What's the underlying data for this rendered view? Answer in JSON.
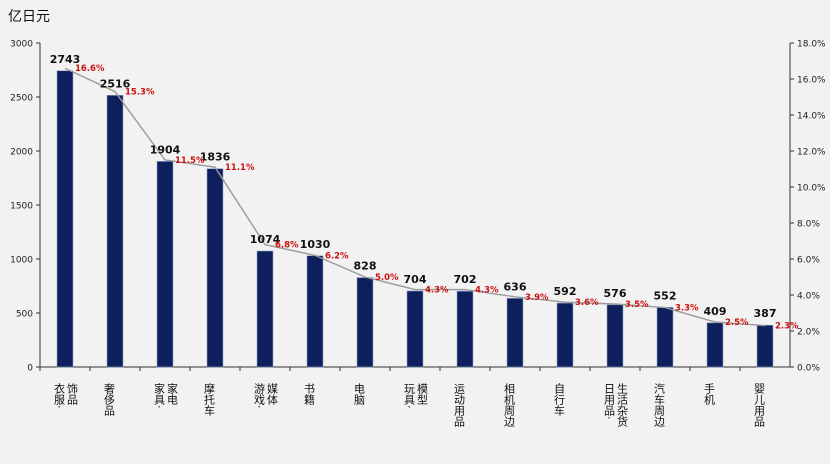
{
  "y_unit_label": "亿日元",
  "chart_data": {
    "type": "bar",
    "title": "",
    "xlabel": "",
    "ylabel": "亿日元",
    "ylim": [
      0,
      3000
    ],
    "y_ticks": [
      "0",
      "500",
      "1000",
      "1500",
      "2000",
      "2500",
      "3000"
    ],
    "y2lim": [
      0,
      18
    ],
    "y2_ticks": [
      "0.0%",
      "2.0%",
      "4.0%",
      "6.0%",
      "8.0%",
      "10.0%",
      "12.0%",
      "14.0%",
      "16.0%",
      "18.0%"
    ],
    "grid": false,
    "legend": "none",
    "bar_color": "#0d1f5c",
    "line_color": "#9a9a9a",
    "pct_label_color": "#cc1111",
    "categories": [
      [
        "衣服·",
        "饰品"
      ],
      [
        "奢侈品"
      ],
      [
        "家具·",
        "家电"
      ],
      [
        "摩托车"
      ],
      [
        "游戏·",
        "媒体"
      ],
      [
        "书籍"
      ],
      [
        "电脑"
      ],
      [
        "玩具·",
        "模型"
      ],
      [
        "运动用品"
      ],
      [
        "相机周边"
      ],
      [
        "自行车"
      ],
      [
        "日用品·",
        "生活杂货"
      ],
      [
        "汽车周边"
      ],
      [
        "手机"
      ],
      [
        "婴儿用品"
      ]
    ],
    "series": [
      {
        "type": "bar",
        "axis": "left",
        "values": [
          2743,
          2516,
          1904,
          1836,
          1074,
          1030,
          828,
          704,
          702,
          636,
          592,
          576,
          552,
          409,
          387
        ],
        "labels": [
          "2743",
          "2516",
          "1904",
          "1836",
          "1074",
          "1030",
          "828",
          "704",
          "702",
          "636",
          "592",
          "576",
          "552",
          "409",
          "387"
        ]
      },
      {
        "type": "line",
        "axis": "right",
        "values": [
          16.6,
          15.3,
          11.5,
          11.1,
          6.8,
          6.2,
          5.0,
          4.3,
          4.3,
          3.9,
          3.6,
          3.5,
          3.3,
          2.5,
          2.3
        ],
        "labels": [
          "16.6%",
          "15.3%",
          "11.5%",
          "11.1%",
          "6.8%",
          "6.2%",
          "5.0%",
          "4.3%",
          "4.3%",
          "3.9%",
          "3.6%",
          "3.5%",
          "3.3%",
          "2.5%",
          "2.3%"
        ]
      }
    ]
  }
}
